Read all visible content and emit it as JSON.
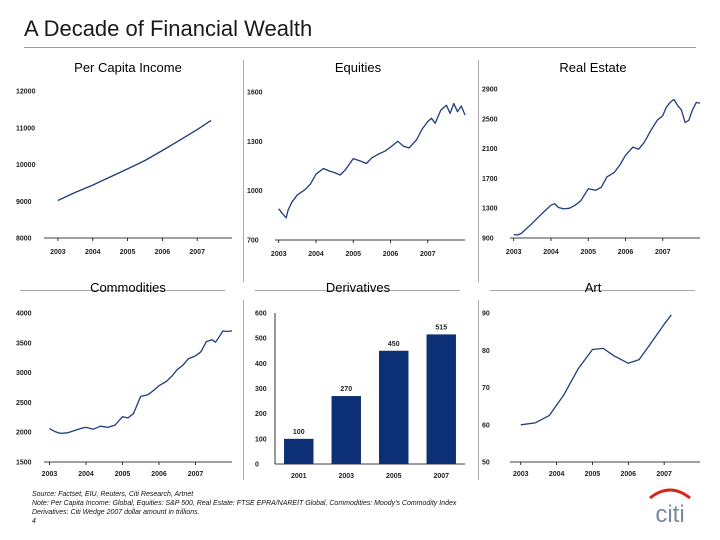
{
  "slide": {
    "title": "A Decade of Financial Wealth",
    "page_number": "4",
    "logo_text": "citi"
  },
  "footer": {
    "source": "Source: Factset, EIU, Reuters, Citi Research, Artnet",
    "note": "Note: Per Capita Income: Global, Equities: S&P 500, Real Estate: FTSE EPRA/NAREIT Global, Commodities: Moody's Commodity Index",
    "derivatives": "Derivatives: Citi Wedge 2007 dollar amount in trillions."
  },
  "colors": {
    "series": "#1f3c7c",
    "bar": "#0d2f75",
    "logo_arc": "#d9261c",
    "logo_text": "#7a8a9a"
  },
  "chart_data": [
    {
      "type": "line",
      "title": "Per Capita Income",
      "ylim": [
        8000,
        12000
      ],
      "yticks": [
        8000,
        9000,
        10000,
        11000,
        12000
      ],
      "xlim": [
        2002.6,
        2008.0
      ],
      "xticks": [
        2003,
        2004,
        2005,
        2006,
        2007
      ],
      "series": [
        {
          "points": [
            [
              2003,
              9020
            ],
            [
              2003.5,
              9240
            ],
            [
              2004,
              9440
            ],
            [
              2004.5,
              9660
            ],
            [
              2005,
              9880
            ],
            [
              2005.5,
              10110
            ],
            [
              2006,
              10380
            ],
            [
              2006.5,
              10660
            ],
            [
              2007,
              10950
            ],
            [
              2007.4,
              11200
            ]
          ]
        }
      ]
    },
    {
      "type": "line",
      "title": "Equities",
      "ylim": [
        700,
        1600
      ],
      "yticks": [
        700,
        1000,
        1300,
        1600
      ],
      "xlim": [
        2002.9,
        2008.0
      ],
      "xticks": [
        2003,
        2004,
        2005,
        2006,
        2007
      ],
      "series": [
        {
          "points": [
            [
              2003,
              890
            ],
            [
              2003.1,
              860
            ],
            [
              2003.2,
              835
            ],
            [
              2003.25,
              880
            ],
            [
              2003.35,
              930
            ],
            [
              2003.5,
              975
            ],
            [
              2003.7,
              1005
            ],
            [
              2003.85,
              1040
            ],
            [
              2004,
              1100
            ],
            [
              2004.2,
              1135
            ],
            [
              2004.35,
              1120
            ],
            [
              2004.5,
              1110
            ],
            [
              2004.65,
              1095
            ],
            [
              2004.8,
              1130
            ],
            [
              2005,
              1195
            ],
            [
              2005.2,
              1180
            ],
            [
              2005.35,
              1165
            ],
            [
              2005.5,
              1200
            ],
            [
              2005.7,
              1225
            ],
            [
              2005.85,
              1240
            ],
            [
              2006,
              1265
            ],
            [
              2006.2,
              1300
            ],
            [
              2006.35,
              1270
            ],
            [
              2006.5,
              1260
            ],
            [
              2006.7,
              1310
            ],
            [
              2006.85,
              1375
            ],
            [
              2007,
              1420
            ],
            [
              2007.1,
              1440
            ],
            [
              2007.2,
              1410
            ],
            [
              2007.35,
              1490
            ],
            [
              2007.5,
              1520
            ],
            [
              2007.6,
              1470
            ],
            [
              2007.7,
              1530
            ],
            [
              2007.8,
              1480
            ],
            [
              2007.9,
              1515
            ],
            [
              2008,
              1460
            ]
          ]
        }
      ]
    },
    {
      "type": "line",
      "title": "Real Estate",
      "ylim": [
        900,
        2900
      ],
      "yticks": [
        900,
        1300,
        1700,
        2100,
        2500,
        2900
      ],
      "xlim": [
        2002.9,
        2008.0
      ],
      "xticks": [
        2003,
        2004,
        2005,
        2006,
        2007
      ],
      "series": [
        {
          "points": [
            [
              2003,
              945
            ],
            [
              2003.1,
              940
            ],
            [
              2003.2,
              960
            ],
            [
              2003.35,
              1030
            ],
            [
              2003.5,
              1100
            ],
            [
              2003.7,
              1200
            ],
            [
              2003.85,
              1270
            ],
            [
              2004,
              1340
            ],
            [
              2004.1,
              1360
            ],
            [
              2004.2,
              1310
            ],
            [
              2004.35,
              1290
            ],
            [
              2004.5,
              1300
            ],
            [
              2004.65,
              1340
            ],
            [
              2004.8,
              1400
            ],
            [
              2005,
              1560
            ],
            [
              2005.2,
              1540
            ],
            [
              2005.35,
              1580
            ],
            [
              2005.5,
              1720
            ],
            [
              2005.7,
              1780
            ],
            [
              2005.85,
              1880
            ],
            [
              2006,
              2010
            ],
            [
              2006.2,
              2120
            ],
            [
              2006.35,
              2090
            ],
            [
              2006.5,
              2180
            ],
            [
              2006.7,
              2360
            ],
            [
              2006.85,
              2480
            ],
            [
              2007,
              2540
            ],
            [
              2007.1,
              2660
            ],
            [
              2007.2,
              2720
            ],
            [
              2007.3,
              2760
            ],
            [
              2007.4,
              2680
            ],
            [
              2007.5,
              2620
            ],
            [
              2007.6,
              2450
            ],
            [
              2007.7,
              2480
            ],
            [
              2007.8,
              2620
            ],
            [
              2007.9,
              2720
            ],
            [
              2008,
              2710
            ]
          ]
        }
      ]
    },
    {
      "type": "line",
      "title": "Commodities",
      "ylim": [
        1500,
        4000
      ],
      "yticks": [
        1500,
        2000,
        2500,
        3000,
        3500,
        4000
      ],
      "xlim": [
        2002.85,
        2008.0
      ],
      "xticks": [
        2003,
        2004,
        2005,
        2006,
        2007
      ],
      "series": [
        {
          "points": [
            [
              2003,
              2060
            ],
            [
              2003.15,
              2010
            ],
            [
              2003.3,
              1980
            ],
            [
              2003.5,
              1990
            ],
            [
              2003.7,
              2030
            ],
            [
              2003.9,
              2070
            ],
            [
              2004,
              2080
            ],
            [
              2004.2,
              2050
            ],
            [
              2004.4,
              2100
            ],
            [
              2004.6,
              2080
            ],
            [
              2004.8,
              2120
            ],
            [
              2005,
              2260
            ],
            [
              2005.15,
              2240
            ],
            [
              2005.3,
              2310
            ],
            [
              2005.5,
              2600
            ],
            [
              2005.7,
              2630
            ],
            [
              2005.85,
              2700
            ],
            [
              2006,
              2780
            ],
            [
              2006.2,
              2850
            ],
            [
              2006.35,
              2940
            ],
            [
              2006.5,
              3050
            ],
            [
              2006.65,
              3120
            ],
            [
              2006.8,
              3230
            ],
            [
              2007,
              3280
            ],
            [
              2007.15,
              3350
            ],
            [
              2007.3,
              3520
            ],
            [
              2007.45,
              3550
            ],
            [
              2007.55,
              3510
            ],
            [
              2007.65,
              3600
            ],
            [
              2007.75,
              3700
            ],
            [
              2007.85,
              3690
            ],
            [
              2008,
              3700
            ]
          ]
        }
      ]
    },
    {
      "type": "bar",
      "title": "Derivatives",
      "categories": [
        "2001",
        "2003",
        "2005",
        "2007"
      ],
      "values": [
        100,
        270,
        450,
        515
      ],
      "ylim": [
        0,
        600
      ],
      "yticks": [
        0,
        100,
        200,
        300,
        400,
        500,
        600
      ]
    },
    {
      "type": "line",
      "title": "Art",
      "ylim": [
        50,
        90
      ],
      "yticks": [
        50,
        60,
        70,
        80,
        90
      ],
      "xlim": [
        2002.7,
        2008.0
      ],
      "xticks": [
        2003,
        2004,
        2005,
        2006,
        2007
      ],
      "series": [
        {
          "points": [
            [
              2003,
              60
            ],
            [
              2003.4,
              60.5
            ],
            [
              2003.8,
              62.5
            ],
            [
              2004.2,
              68
            ],
            [
              2004.6,
              75
            ],
            [
              2005,
              80.2
            ],
            [
              2005.3,
              80.5
            ],
            [
              2005.6,
              78.5
            ],
            [
              2006,
              76.5
            ],
            [
              2006.3,
              77.5
            ],
            [
              2006.6,
              81.5
            ],
            [
              2007,
              87
            ],
            [
              2007.2,
              89.5
            ]
          ]
        }
      ]
    }
  ]
}
